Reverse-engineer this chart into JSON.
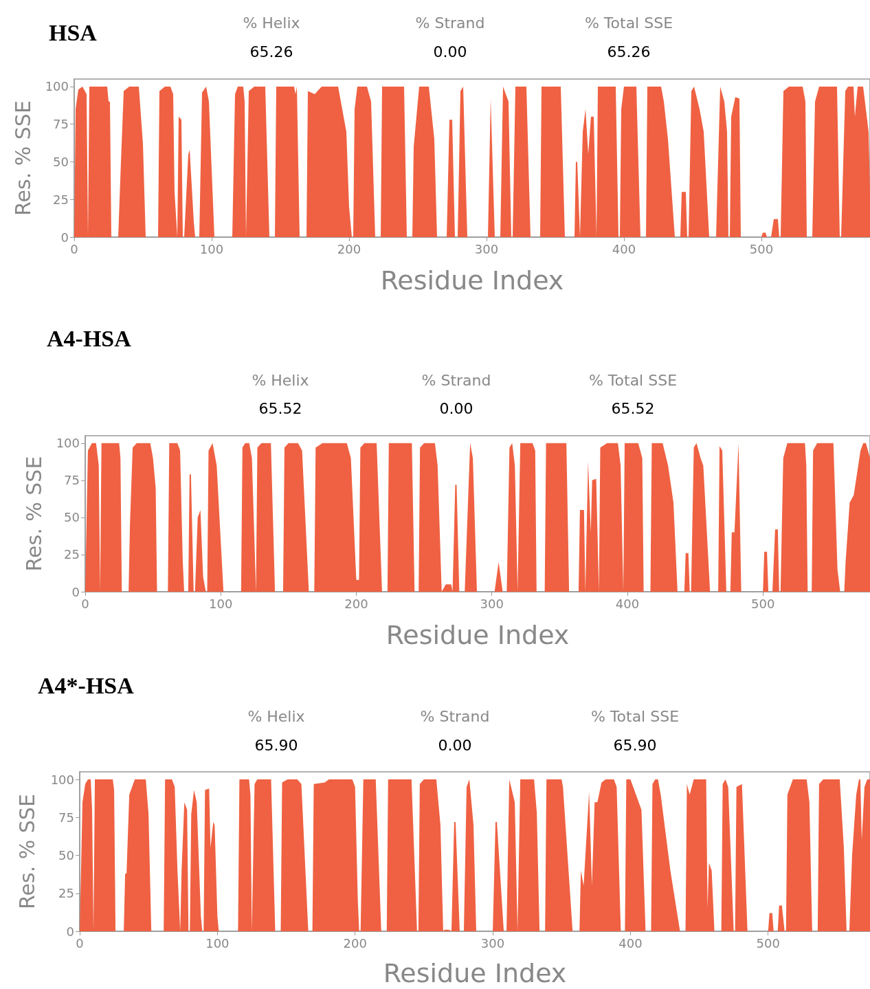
{
  "chart_data": [
    {
      "type": "area",
      "title": "HSA",
      "xlabel": "Residue Index",
      "ylabel": "Res. % SSE",
      "annotations": [
        "% Helix",
        "65.26",
        "% Strand",
        "0.00",
        "% Total SSE",
        "65.26"
      ],
      "x": [
        0,
        1,
        3,
        6,
        9,
        10,
        11,
        24,
        25,
        26,
        27,
        32,
        34,
        36,
        40,
        47,
        50,
        52,
        61,
        62,
        66,
        70,
        72,
        73,
        75,
        76,
        78,
        79,
        80,
        83,
        84,
        87,
        88,
        91,
        93,
        96,
        98,
        102,
        115,
        117,
        119,
        123,
        124,
        125,
        127,
        131,
        139,
        142,
        146,
        147,
        160,
        161,
        162,
        164,
        169,
        170,
        175,
        180,
        192,
        195,
        198,
        200,
        202,
        203,
        204,
        206,
        213,
        216,
        219,
        223,
        224,
        240,
        242,
        246,
        247,
        251,
        258,
        262,
        264,
        271,
        273,
        275,
        277,
        279,
        281,
        283,
        286,
        301,
        303,
        306,
        310,
        312,
        316,
        318,
        319,
        321,
        329,
        332,
        339,
        340,
        354,
        357,
        364,
        365,
        366,
        368,
        370,
        372,
        374,
        376,
        378,
        380,
        381,
        394,
        396,
        397,
        398,
        400,
        409,
        412,
        416,
        417,
        427,
        429,
        432,
        437,
        441,
        442,
        445,
        446,
        447,
        449,
        451,
        455,
        458,
        462,
        467,
        470,
        473,
        475,
        476,
        477,
        478,
        481,
        484,
        485,
        500,
        501,
        503,
        504,
        507,
        509,
        512,
        513,
        514,
        516,
        520,
        530,
        532,
        533,
        537,
        539,
        542,
        555,
        557,
        558,
        561,
        563,
        567,
        568,
        570,
        574,
        578,
        579
      ],
      "series": [
        {
          "color": "#ef6142",
          "values": [
            0,
            85,
            98,
            100,
            95,
            0,
            100,
            100,
            90,
            90,
            0,
            0,
            50,
            97,
            100,
            100,
            62,
            0,
            0,
            97,
            100,
            100,
            95,
            30,
            0,
            80,
            78,
            0,
            0,
            55,
            58,
            10,
            0,
            0,
            96,
            100,
            90,
            0,
            0,
            95,
            100,
            100,
            90,
            0,
            97,
            100,
            100,
            0,
            0,
            100,
            100,
            95,
            100,
            0,
            0,
            97,
            95,
            100,
            100,
            85,
            70,
            20,
            0,
            0,
            85,
            100,
            100,
            90,
            0,
            0,
            100,
            100,
            0,
            0,
            60,
            100,
            100,
            65,
            0,
            0,
            78,
            78,
            0,
            0,
            97,
            100,
            0,
            0,
            92,
            0,
            0,
            100,
            90,
            0,
            0,
            100,
            100,
            0,
            0,
            100,
            100,
            0,
            0,
            50,
            50,
            0,
            70,
            85,
            55,
            80,
            80,
            0,
            100,
            100,
            0,
            0,
            85,
            100,
            100,
            0,
            0,
            100,
            100,
            90,
            65,
            0,
            0,
            30,
            30,
            0,
            0,
            97,
            100,
            85,
            70,
            0,
            0,
            100,
            90,
            70,
            0,
            0,
            80,
            93,
            92,
            0,
            0,
            3,
            3,
            0,
            0,
            12,
            12,
            0,
            0,
            97,
            100,
            100,
            90,
            0,
            0,
            90,
            100,
            100,
            0,
            0,
            97,
            100,
            100,
            80,
            100,
            100,
            70,
            30
          ]
        }
      ],
      "xlim": [
        0,
        579
      ],
      "xticks": [
        0,
        100,
        200,
        300,
        400,
        500
      ],
      "ylim": [
        0,
        105
      ],
      "yticks": [
        0,
        25,
        50,
        75,
        100
      ],
      "grid": false
    },
    {
      "type": "area",
      "title": "A4-HSA",
      "xlabel": "Residue Index",
      "ylabel": "Res. % SSE",
      "annotations": [
        "% Helix",
        "65.52",
        "% Strand",
        "0.00",
        "% Total SSE",
        "65.52"
      ],
      "x": [
        0,
        2,
        5,
        8,
        10,
        11,
        12,
        25,
        26,
        27,
        32,
        33,
        35,
        38,
        48,
        50,
        52,
        53,
        61,
        62,
        68,
        70,
        72,
        73,
        76,
        77,
        78,
        80,
        81,
        83,
        85,
        87,
        89,
        90,
        91,
        94,
        97,
        102,
        115,
        116,
        118,
        121,
        123,
        126,
        127,
        130,
        137,
        140,
        146,
        147,
        150,
        157,
        160,
        165,
        169,
        170,
        175,
        193,
        196,
        200,
        202,
        203,
        206,
        215,
        219,
        223,
        224,
        241,
        243,
        246,
        247,
        250,
        258,
        260,
        263,
        266,
        270,
        271,
        273,
        274,
        276,
        280,
        284,
        286,
        289,
        302,
        305,
        308,
        311,
        313,
        315,
        317,
        319,
        321,
        330,
        332,
        333,
        339,
        340,
        355,
        357,
        364,
        365,
        368,
        369,
        371,
        373,
        374,
        377,
        379,
        380,
        385,
        393,
        395,
        397,
        398,
        408,
        411,
        412,
        417,
        418,
        426,
        430,
        434,
        437,
        442,
        443,
        445,
        446,
        447,
        449,
        451,
        454,
        456,
        461,
        467,
        468,
        470,
        473,
        476,
        477,
        479,
        482,
        484,
        500,
        501,
        503,
        504,
        507,
        509,
        511,
        512,
        513,
        515,
        518,
        531,
        532,
        533,
        536,
        537,
        540,
        552,
        555,
        557,
        560,
        561,
        564,
        567,
        572,
        574,
        576,
        579
      ],
      "series": [
        {
          "color": "#ef6142",
          "values": [
            0,
            95,
            100,
            100,
            85,
            0,
            100,
            100,
            90,
            0,
            0,
            45,
            97,
            100,
            100,
            90,
            70,
            0,
            0,
            100,
            100,
            95,
            20,
            0,
            0,
            79,
            79,
            0,
            0,
            50,
            55,
            10,
            0,
            0,
            95,
            100,
            85,
            0,
            0,
            97,
            100,
            100,
            90,
            0,
            97,
            100,
            100,
            0,
            0,
            97,
            100,
            100,
            95,
            0,
            0,
            97,
            100,
            100,
            90,
            8,
            8,
            97,
            100,
            100,
            0,
            0,
            100,
            100,
            0,
            0,
            97,
            100,
            100,
            85,
            0,
            5,
            5,
            0,
            72,
            72,
            0,
            0,
            100,
            90,
            0,
            0,
            20,
            0,
            0,
            97,
            100,
            85,
            0,
            100,
            100,
            95,
            0,
            0,
            100,
            100,
            0,
            0,
            55,
            55,
            0,
            88,
            40,
            75,
            76,
            0,
            97,
            100,
            100,
            85,
            0,
            100,
            100,
            90,
            0,
            0,
            100,
            100,
            85,
            60,
            0,
            0,
            26,
            26,
            0,
            0,
            97,
            100,
            90,
            85,
            0,
            0,
            98,
            95,
            0,
            0,
            40,
            40,
            100,
            0,
            0,
            27,
            27,
            0,
            0,
            42,
            42,
            0,
            0,
            90,
            100,
            100,
            85,
            0,
            0,
            95,
            100,
            100,
            15,
            0,
            0,
            20,
            60,
            65,
            95,
            100,
            100,
            90
          ]
        }
      ],
      "xlim": [
        0,
        579
      ],
      "xticks": [
        0,
        100,
        200,
        300,
        400,
        500
      ],
      "ylim": [
        0,
        105
      ],
      "yticks": [
        0,
        25,
        50,
        75,
        100
      ],
      "grid": false
    },
    {
      "type": "area",
      "title": "A4*-HSA",
      "xlabel": "Residue Index",
      "ylabel": "Res. % SSE",
      "annotations": [
        "% Helix",
        "65.90",
        "% Strand",
        "0.00",
        "% Total SSE",
        "65.90"
      ],
      "x": [
        0,
        2,
        4,
        6,
        8,
        9,
        10,
        11,
        24,
        25,
        26,
        32,
        33,
        34,
        36,
        40,
        48,
        50,
        52,
        61,
        62,
        67,
        69,
        71,
        73,
        74,
        76,
        78,
        79,
        80,
        81,
        83,
        85,
        88,
        89,
        90,
        91,
        94,
        95,
        97,
        98,
        100,
        101,
        115,
        116,
        123,
        124,
        125,
        127,
        129,
        139,
        142,
        146,
        147,
        151,
        158,
        161,
        166,
        169,
        170,
        178,
        181,
        198,
        200,
        202,
        203,
        204,
        206,
        215,
        219,
        223,
        224,
        241,
        245,
        246,
        247,
        250,
        259,
        262,
        264,
        265,
        268,
        270,
        272,
        273,
        276,
        279,
        281,
        283,
        286,
        288,
        300,
        302,
        303,
        308,
        310,
        312,
        316,
        318,
        320,
        330,
        332,
        334,
        338,
        339,
        350,
        351,
        358,
        363,
        364,
        366,
        370,
        372,
        374,
        376,
        379,
        382,
        388,
        390,
        393,
        396,
        397,
        400,
        408,
        411,
        415,
        416,
        418,
        420,
        422,
        429,
        436,
        440,
        441,
        443,
        446,
        455,
        456,
        457,
        459,
        461,
        466,
        467,
        469,
        471,
        475,
        476,
        477,
        481,
        485,
        500,
        501,
        503,
        504,
        507,
        508,
        510,
        512,
        513,
        514,
        516,
        518,
        528,
        530,
        532,
        536,
        537,
        540,
        552,
        555,
        557,
        559,
        561,
        564,
        566,
        567,
        568,
        570,
        572,
        574
      ],
      "series": [
        {
          "color": "#ef6142",
          "values": [
            0,
            85,
            97,
            100,
            100,
            80,
            0,
            100,
            100,
            93,
            0,
            0,
            38,
            38,
            90,
            100,
            100,
            77,
            0,
            0,
            100,
            100,
            95,
            40,
            0,
            40,
            85,
            80,
            0,
            0,
            77,
            93,
            85,
            10,
            0,
            0,
            93,
            94,
            55,
            72,
            70,
            10,
            0,
            0,
            100,
            100,
            90,
            0,
            97,
            100,
            100,
            0,
            0,
            98,
            100,
            100,
            97,
            0,
            0,
            97,
            98,
            100,
            100,
            95,
            20,
            0,
            0,
            100,
            100,
            0,
            0,
            100,
            100,
            0,
            0,
            97,
            100,
            100,
            70,
            0,
            1,
            1,
            0,
            72,
            72,
            0,
            0,
            95,
            100,
            70,
            0,
            0,
            72,
            72,
            0,
            0,
            100,
            85,
            0,
            100,
            100,
            78,
            0,
            0,
            100,
            100,
            95,
            0,
            0,
            40,
            30,
            92,
            30,
            85,
            85,
            98,
            100,
            100,
            95,
            0,
            0,
            100,
            100,
            80,
            0,
            0,
            97,
            100,
            100,
            90,
            40,
            0,
            0,
            97,
            90,
            100,
            100,
            15,
            45,
            40,
            0,
            0,
            97,
            100,
            95,
            0,
            0,
            95,
            97,
            0,
            0,
            12,
            12,
            0,
            0,
            17,
            17,
            0,
            0,
            90,
            95,
            100,
            100,
            85,
            0,
            0,
            97,
            100,
            100,
            55,
            0,
            0,
            50,
            90,
            100,
            100,
            60,
            95,
            100,
            100
          ]
        }
      ],
      "xlim": [
        0,
        574
      ],
      "xticks": [
        0,
        100,
        200,
        300,
        400,
        500
      ],
      "ylim": [
        0,
        105
      ],
      "yticks": [
        0,
        25,
        50,
        75,
        100
      ],
      "grid": false
    }
  ]
}
